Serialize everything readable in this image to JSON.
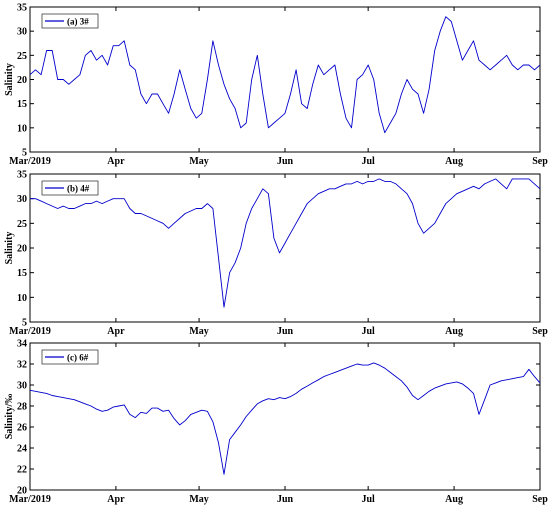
{
  "figure": {
    "x_tick_labels": [
      "Mar/2019",
      "Apr",
      "May",
      "Jun",
      "Jul",
      "Aug",
      "Sep"
    ]
  },
  "chart_data": [
    {
      "type": "line",
      "legend": "(a) 3#",
      "ylabel": "Salinity",
      "ylim": [
        5,
        35
      ],
      "yticks": [
        5,
        10,
        15,
        20,
        25,
        30,
        35
      ],
      "xlim": [
        0,
        184
      ],
      "x_unit": "days since 1 Mar 2019",
      "series": [
        {
          "x": [
            0,
            2,
            4,
            6,
            8,
            10,
            12,
            14,
            16,
            18,
            20,
            22,
            24,
            26,
            28,
            30,
            32,
            34,
            36,
            38,
            40,
            42,
            44,
            46,
            48,
            50,
            52,
            54,
            56,
            58,
            60,
            62,
            64,
            66,
            68,
            70,
            72,
            74,
            76,
            78,
            80,
            82,
            84,
            86,
            88,
            90,
            92,
            94,
            96,
            98,
            100,
            102,
            104,
            106,
            108,
            110,
            112,
            114,
            116,
            118,
            120,
            122,
            124,
            126,
            128,
            130,
            132,
            134,
            136,
            138,
            140,
            142,
            144,
            146,
            148,
            150,
            152,
            154,
            156,
            158,
            160,
            162,
            164,
            166,
            168,
            170,
            172,
            174,
            176,
            178,
            180,
            182,
            184
          ],
          "y": [
            21,
            22,
            21,
            26,
            26,
            20,
            20,
            19,
            20,
            21,
            25,
            26,
            24,
            25,
            23,
            27,
            27,
            28,
            23,
            22,
            17,
            15,
            17,
            17,
            15,
            13,
            17,
            22,
            18,
            14,
            12,
            13,
            20,
            28,
            23,
            19,
            16,
            14,
            10,
            11,
            20,
            25,
            17,
            10,
            11,
            12,
            13,
            17,
            22,
            15,
            14,
            19,
            23,
            21,
            22,
            23,
            17,
            12,
            10,
            20,
            21,
            23,
            20,
            13,
            9,
            11,
            13,
            17,
            20,
            18,
            17,
            13,
            18,
            26,
            30,
            33,
            32,
            28,
            24,
            26,
            28,
            24,
            23,
            22,
            23,
            24,
            25,
            23,
            22,
            23,
            23,
            22,
            23
          ]
        }
      ]
    },
    {
      "type": "line",
      "legend": "(b) 4#",
      "ylabel": "Salinity",
      "ylim": [
        5,
        35
      ],
      "yticks": [
        5,
        10,
        15,
        20,
        25,
        30,
        35
      ],
      "xlim": [
        0,
        184
      ],
      "x_unit": "days since 1 Mar 2019",
      "series": [
        {
          "x": [
            0,
            2,
            4,
            6,
            8,
            10,
            12,
            14,
            16,
            18,
            20,
            22,
            24,
            26,
            28,
            30,
            32,
            34,
            36,
            38,
            40,
            42,
            44,
            46,
            48,
            50,
            52,
            54,
            56,
            58,
            60,
            62,
            64,
            66,
            68,
            70,
            72,
            74,
            76,
            78,
            80,
            82,
            84,
            86,
            88,
            90,
            92,
            94,
            96,
            98,
            100,
            102,
            104,
            106,
            108,
            110,
            112,
            114,
            116,
            118,
            120,
            122,
            124,
            126,
            128,
            130,
            132,
            134,
            136,
            138,
            140,
            142,
            144,
            146,
            148,
            150,
            152,
            154,
            156,
            158,
            160,
            162,
            164,
            166,
            168,
            170,
            172,
            174,
            176,
            178,
            180,
            182,
            184
          ],
          "y": [
            30,
            30,
            29.5,
            29,
            28.5,
            28,
            28.5,
            28,
            28,
            28.5,
            29,
            29,
            29.5,
            29,
            29.5,
            30,
            30,
            30,
            28,
            27,
            27,
            26.5,
            26,
            25.5,
            25,
            24,
            25,
            26,
            27,
            27.5,
            28,
            28,
            29,
            28,
            18,
            8,
            15,
            17,
            20,
            25,
            28,
            30,
            32,
            31,
            22,
            19,
            21,
            23,
            25,
            27,
            29,
            30,
            31,
            31.5,
            32,
            32,
            32.5,
            33,
            33,
            33.5,
            33,
            33.5,
            33.5,
            34,
            33.5,
            33.5,
            33,
            32,
            31,
            29,
            25,
            23,
            24,
            25,
            27,
            29,
            30,
            31,
            31.5,
            32,
            32.5,
            32,
            33,
            33.5,
            34,
            33,
            32,
            34,
            34,
            34,
            34,
            33,
            32
          ]
        }
      ]
    },
    {
      "type": "line",
      "legend": "(c) 6#",
      "ylabel": "Salinity/‰",
      "ylim": [
        20,
        34
      ],
      "yticks": [
        20,
        22,
        24,
        26,
        28,
        30,
        32,
        34
      ],
      "xlim": [
        0,
        184
      ],
      "x_unit": "days since 1 Mar 2019",
      "series": [
        {
          "x": [
            0,
            2,
            4,
            6,
            8,
            10,
            12,
            14,
            16,
            18,
            20,
            22,
            24,
            26,
            28,
            30,
            32,
            34,
            36,
            38,
            40,
            42,
            44,
            46,
            48,
            50,
            52,
            54,
            56,
            58,
            60,
            62,
            64,
            66,
            68,
            70,
            72,
            74,
            76,
            78,
            80,
            82,
            84,
            86,
            88,
            90,
            92,
            94,
            96,
            98,
            100,
            102,
            104,
            106,
            108,
            110,
            112,
            114,
            116,
            118,
            120,
            122,
            124,
            126,
            128,
            130,
            132,
            134,
            136,
            138,
            140,
            142,
            144,
            146,
            148,
            150,
            152,
            154,
            156,
            158,
            160,
            162,
            164,
            166,
            168,
            170,
            172,
            174,
            176,
            178,
            180,
            182,
            184
          ],
          "y": [
            29.5,
            29.4,
            29.3,
            29.2,
            29,
            28.9,
            28.8,
            28.7,
            28.6,
            28.4,
            28.2,
            28,
            27.7,
            27.5,
            27.6,
            27.9,
            28,
            28.1,
            27.2,
            26.9,
            27.4,
            27.3,
            27.8,
            27.8,
            27.5,
            27.6,
            26.8,
            26.2,
            26.6,
            27.2,
            27.4,
            27.6,
            27.5,
            26.5,
            24.5,
            21.5,
            24.8,
            25.5,
            26.2,
            27,
            27.6,
            28.2,
            28.5,
            28.7,
            28.6,
            28.8,
            28.7,
            28.9,
            29.2,
            29.6,
            29.9,
            30.2,
            30.5,
            30.8,
            31,
            31.2,
            31.4,
            31.6,
            31.8,
            32,
            31.9,
            31.9,
            32.1,
            31.9,
            31.6,
            31.2,
            30.8,
            30.4,
            29.8,
            29,
            28.6,
            29,
            29.4,
            29.7,
            29.9,
            30.1,
            30.2,
            30.3,
            30.1,
            29.7,
            29.2,
            27.2,
            28.6,
            30,
            30.2,
            30.4,
            30.5,
            30.6,
            30.7,
            30.8,
            31.5,
            30.8,
            30.2
          ]
        }
      ]
    }
  ]
}
